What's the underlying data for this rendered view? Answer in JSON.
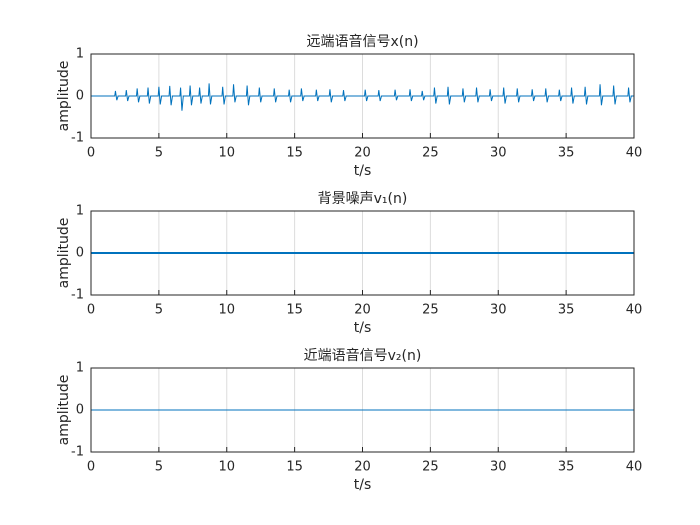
{
  "chart_data": [
    {
      "type": "line",
      "title": "远端语音信号x(n)",
      "xlabel": "t/s",
      "ylabel": "amplitude",
      "xlim": [
        0,
        40
      ],
      "ylim": [
        -1,
        1
      ],
      "xticks": [
        0,
        5,
        10,
        15,
        20,
        25,
        30,
        35,
        40
      ],
      "yticks": [
        -1,
        0,
        1
      ],
      "grid": true,
      "series": [
        {
          "color": "#0072bd",
          "linewidth": 1,
          "x": [
            0,
            1.75,
            1.8,
            1.9,
            2,
            2.55,
            2.6,
            2.7,
            2.8,
            3.35,
            3.4,
            3.5,
            3.6,
            4.15,
            4.2,
            4.3,
            4.4,
            4.95,
            5,
            5.1,
            5.2,
            5.75,
            5.8,
            5.9,
            6,
            6.55,
            6.6,
            6.7,
            6.8,
            7.25,
            7.3,
            7.4,
            7.5,
            7.95,
            8,
            8.1,
            8.2,
            8.65,
            8.7,
            8.8,
            8.9,
            9.65,
            9.7,
            9.8,
            9.9,
            10.45,
            10.5,
            10.6,
            10.7,
            11.45,
            11.5,
            11.6,
            11.7,
            12.35,
            12.4,
            12.5,
            12.6,
            13.45,
            13.5,
            13.6,
            13.7,
            14.55,
            14.6,
            14.7,
            14.8,
            15.45,
            15.5,
            15.6,
            15.7,
            16.55,
            16.6,
            16.7,
            16.8,
            17.55,
            17.6,
            17.7,
            17.8,
            18.55,
            18.6,
            18.7,
            18.8,
            20.15,
            20.2,
            20.3,
            20.4,
            21.15,
            21.2,
            21.3,
            21.4,
            22.35,
            22.4,
            22.5,
            22.6,
            23.45,
            23.5,
            23.6,
            23.7,
            24.35,
            24.4,
            24.5,
            24.6,
            25.25,
            25.3,
            25.4,
            25.5,
            26.25,
            26.3,
            26.4,
            26.5,
            27.35,
            27.4,
            27.5,
            27.6,
            28.35,
            28.4,
            28.5,
            28.6,
            29.35,
            29.4,
            29.5,
            29.6,
            30.35,
            30.4,
            30.5,
            30.6,
            31.35,
            31.4,
            31.5,
            31.6,
            32.45,
            32.5,
            32.6,
            32.7,
            33.45,
            33.5,
            33.6,
            33.7,
            34.45,
            34.5,
            34.6,
            34.7,
            35.35,
            35.4,
            35.5,
            35.6,
            36.35,
            36.4,
            36.5,
            36.6,
            37.45,
            37.5,
            37.6,
            37.7,
            38.45,
            38.5,
            38.6,
            38.7,
            39.55,
            39.6,
            39.7,
            39.8,
            40
          ],
          "values": [
            0,
            0,
            0.12,
            -0.1,
            0,
            0,
            0.14,
            -0.12,
            0,
            0,
            0.18,
            -0.15,
            0,
            0,
            0.2,
            -0.18,
            0,
            0,
            0.22,
            -0.2,
            0,
            0,
            0.24,
            -0.22,
            0,
            0,
            0.2,
            -0.35,
            0,
            0,
            0.25,
            -0.22,
            0,
            0,
            0.2,
            -0.18,
            0,
            0,
            0.3,
            -0.2,
            0,
            0,
            0.22,
            -0.2,
            0,
            0,
            0.28,
            -0.15,
            0,
            0,
            0.25,
            -0.22,
            0,
            0,
            0.2,
            -0.15,
            0,
            0,
            0.18,
            -0.15,
            0,
            0,
            0.15,
            -0.15,
            0,
            0,
            0.18,
            -0.12,
            0,
            0,
            0.15,
            -0.12,
            0,
            0,
            0.16,
            -0.15,
            0,
            0,
            0.14,
            -0.12,
            0,
            0,
            0.15,
            -0.12,
            0,
            0,
            0.14,
            -0.12,
            0,
            0,
            0.15,
            -0.1,
            0,
            0,
            0.16,
            -0.12,
            0,
            0,
            0.12,
            -0.1,
            0,
            0,
            0.2,
            -0.18,
            0,
            0,
            0.22,
            -0.2,
            0,
            0,
            0.18,
            -0.15,
            0,
            0,
            0.2,
            -0.15,
            0,
            0,
            0.16,
            -0.12,
            0,
            0,
            0.2,
            -0.18,
            0,
            0,
            0.18,
            -0.15,
            0,
            0,
            0.16,
            -0.12,
            0,
            0,
            0.18,
            -0.15,
            0,
            0,
            0.15,
            -0.12,
            0,
            0,
            0.2,
            -0.18,
            0,
            0,
            0.22,
            -0.2,
            0,
            0,
            0.28,
            -0.22,
            0,
            0,
            0.25,
            -0.2,
            0,
            0,
            0.2,
            -0.15,
            0,
            0
          ]
        }
      ]
    },
    {
      "type": "line",
      "title": "背景噪声v₁(n)",
      "xlabel": "t/s",
      "ylabel": "amplitude",
      "xlim": [
        0,
        40
      ],
      "ylim": [
        -1,
        1
      ],
      "xticks": [
        0,
        5,
        10,
        15,
        20,
        25,
        30,
        35,
        40
      ],
      "yticks": [
        -1,
        0,
        1
      ],
      "grid": true,
      "series": [
        {
          "color": "#0072bd",
          "linewidth": 2,
          "x": [
            0,
            40
          ],
          "values": [
            0,
            0
          ]
        }
      ]
    },
    {
      "type": "line",
      "title": "近端语音信号v₂(n)",
      "xlabel": "t/s",
      "ylabel": "amplitude",
      "xlim": [
        0,
        40
      ],
      "ylim": [
        -1,
        1
      ],
      "xticks": [
        0,
        5,
        10,
        15,
        20,
        25,
        30,
        35,
        40
      ],
      "yticks": [
        -1,
        0,
        1
      ],
      "grid": true,
      "series": [
        {
          "color": "#0072bd",
          "linewidth": 1,
          "x": [
            0,
            40
          ],
          "values": [
            0,
            0
          ]
        }
      ]
    }
  ]
}
